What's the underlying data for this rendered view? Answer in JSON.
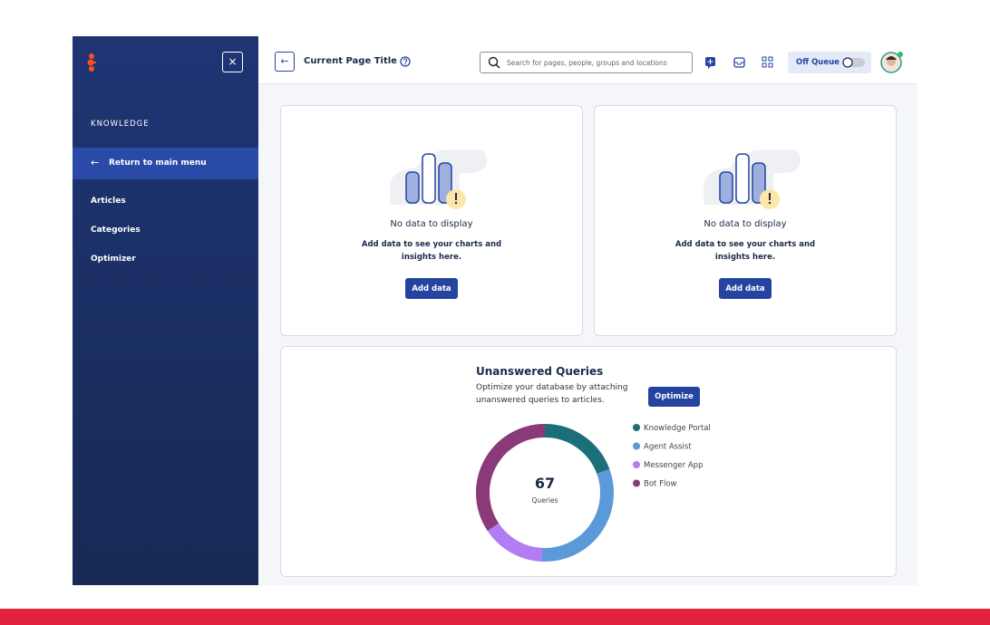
{
  "sidebar": {
    "section": "KNOWLEDGE",
    "return_label": "Return to main menu",
    "items": [
      "Articles",
      "Categories",
      "Optimizer"
    ]
  },
  "header": {
    "title": "Current Page Title",
    "search_placeholder": "Search for pages, people, groups and locations",
    "queue_label": "Off Queue"
  },
  "cards": [
    {
      "title": "No data to display",
      "text": "Add data to see your charts and insights here.",
      "button": "Add data"
    },
    {
      "title": "No data to display",
      "text": "Add data to see your charts and insights here.",
      "button": "Add data"
    }
  ],
  "chart_data": {
    "type": "donut",
    "title": "Unanswered Queries",
    "subtitle": "Optimize your database by attaching unanswered queries to articles.",
    "button": "Optimize",
    "total": 67,
    "total_label": "Queries",
    "categories": [
      "Knowledge Portal",
      "Agent Assist",
      "Messenger App",
      "Bot Flow"
    ],
    "values": [
      13,
      21,
      10,
      23
    ],
    "colors": [
      "#1b6f78",
      "#5b9ad8",
      "#b27cf2",
      "#8a3a78"
    ]
  }
}
